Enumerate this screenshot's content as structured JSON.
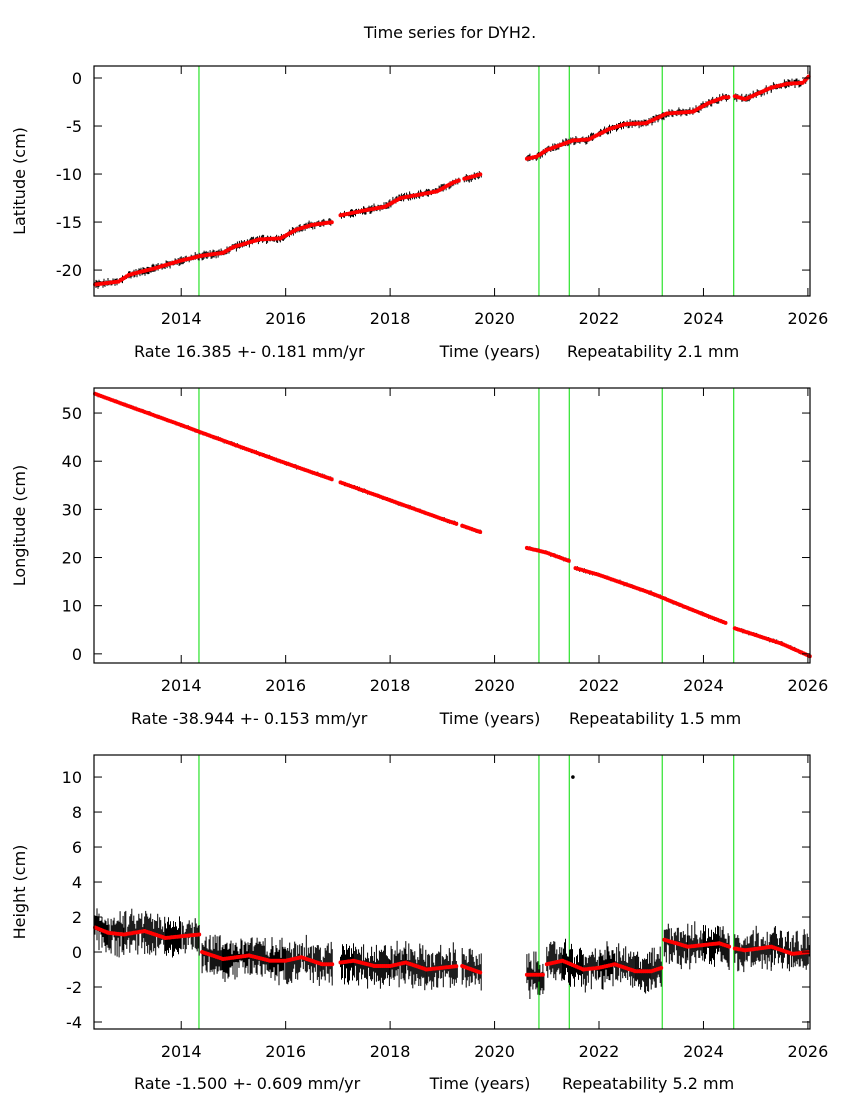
{
  "title": "Time series for DYH2.",
  "colors": {
    "data": "#000000",
    "fit": "#ff0000",
    "event_line": "#00dd00",
    "axis": "#000000"
  },
  "chart_data": [
    {
      "type": "scatter",
      "ylabel": "Latitude (cm)",
      "xlabel": "Time (years)",
      "rate_text": "Rate 16.385 +- 0.181 mm/yr",
      "repeatability_text": "Repeatability 2.1 mm",
      "xlim": [
        2012.33,
        2026.04
      ],
      "ylim": [
        -22.7,
        1.25
      ],
      "xticks": [
        "2014",
        "2016",
        "2018",
        "2020",
        "2022",
        "2024",
        "2026"
      ],
      "yticks": [
        "0",
        "-5",
        "-10",
        "-15",
        "-20"
      ],
      "scatter_halfwidth": 0.35,
      "event_lines": [
        2014.34,
        2020.85,
        2021.43,
        2023.21,
        2024.58
      ],
      "fit_segments": [
        [
          [
            2012.35,
            -21.5
          ],
          [
            2012.8,
            -21.2
          ],
          [
            2013.0,
            -20.5
          ],
          [
            2013.5,
            -19.8
          ],
          [
            2014.0,
            -19.0
          ],
          [
            2014.4,
            -18.5
          ],
          [
            2014.8,
            -18.2
          ],
          [
            2015.0,
            -17.6
          ],
          [
            2015.5,
            -16.8
          ],
          [
            2015.9,
            -16.7
          ],
          [
            2016.2,
            -15.8
          ],
          [
            2016.5,
            -15.3
          ],
          [
            2016.9,
            -15.0
          ]
        ],
        [
          [
            2017.05,
            -14.3
          ],
          [
            2017.5,
            -13.8
          ],
          [
            2017.9,
            -13.4
          ],
          [
            2018.2,
            -12.5
          ],
          [
            2018.6,
            -12.1
          ],
          [
            2018.9,
            -11.8
          ],
          [
            2019.2,
            -10.9
          ],
          [
            2019.35,
            -10.6
          ]
        ],
        [
          [
            2019.42,
            -10.5
          ],
          [
            2019.75,
            -10.0
          ]
        ],
        [
          [
            2020.62,
            -8.4
          ],
          [
            2020.8,
            -8.2
          ],
          [
            2021.0,
            -7.5
          ],
          [
            2021.5,
            -6.5
          ],
          [
            2021.8,
            -6.4
          ],
          [
            2022.2,
            -5.3
          ],
          [
            2022.5,
            -4.8
          ],
          [
            2022.9,
            -4.7
          ],
          [
            2023.3,
            -3.7
          ],
          [
            2023.8,
            -3.5
          ],
          [
            2024.1,
            -2.6
          ],
          [
            2024.4,
            -2.0
          ],
          [
            2024.5,
            -2.0
          ]
        ],
        [
          [
            2024.6,
            -1.9
          ],
          [
            2024.8,
            -2.2
          ],
          [
            2025.3,
            -1.0
          ],
          [
            2025.6,
            -0.6
          ],
          [
            2025.9,
            -0.5
          ],
          [
            2026.04,
            0.3
          ]
        ]
      ],
      "outliers": []
    },
    {
      "type": "scatter",
      "ylabel": "Longitude (cm)",
      "xlabel": "Time (years)",
      "rate_text": "Rate -38.944 +- 0.153 mm/yr",
      "repeatability_text": "Repeatability 1.5 mm",
      "xlim": [
        2012.33,
        2026.04
      ],
      "ylim": [
        -1.9,
        55.2
      ],
      "xticks": [
        "2014",
        "2016",
        "2018",
        "2020",
        "2022",
        "2024",
        "2026"
      ],
      "yticks": [
        "50",
        "40",
        "30",
        "20",
        "10",
        "0"
      ],
      "scatter_halfwidth": 0.35,
      "event_lines": [
        2014.34,
        2020.85,
        2021.43,
        2023.21,
        2024.58
      ],
      "fit_segments": [
        [
          [
            2012.35,
            54.0
          ],
          [
            2013.0,
            51.4
          ],
          [
            2014.0,
            47.5
          ],
          [
            2015.0,
            43.5
          ],
          [
            2016.0,
            39.6
          ],
          [
            2016.9,
            36.2
          ]
        ],
        [
          [
            2017.05,
            35.6
          ],
          [
            2018.0,
            31.9
          ],
          [
            2019.0,
            28.0
          ],
          [
            2019.3,
            26.9
          ]
        ],
        [
          [
            2019.38,
            26.6
          ],
          [
            2019.75,
            25.2
          ]
        ],
        [
          [
            2020.62,
            22.0
          ],
          [
            2021.0,
            21.0
          ],
          [
            2021.45,
            19.2
          ]
        ],
        [
          [
            2021.55,
            17.8
          ],
          [
            2022.0,
            16.4
          ],
          [
            2023.0,
            12.6
          ],
          [
            2024.0,
            8.2
          ],
          [
            2024.45,
            6.3
          ]
        ],
        [
          [
            2024.6,
            5.3
          ],
          [
            2025.0,
            3.9
          ],
          [
            2025.5,
            2.1
          ],
          [
            2026.04,
            -0.5
          ]
        ]
      ],
      "outliers": []
    },
    {
      "type": "scatter",
      "ylabel": "Height (cm)",
      "xlabel": "Time (years)",
      "rate_text": "Rate -1.500 +- 0.609 mm/yr",
      "repeatability_text": "Repeatability 5.2 mm",
      "xlim": [
        2012.33,
        2026.04
      ],
      "ylim": [
        -4.4,
        11.26
      ],
      "xticks": [
        "2014",
        "2016",
        "2018",
        "2020",
        "2022",
        "2024",
        "2026"
      ],
      "yticks": [
        "10",
        "8",
        "6",
        "4",
        "2",
        "0",
        "-2",
        "-4"
      ],
      "scatter_halfwidth": 0.9,
      "event_lines": [
        2014.34,
        2020.85,
        2021.43,
        2023.21,
        2024.58
      ],
      "fit_segments": [
        [
          [
            2012.35,
            1.4
          ],
          [
            2012.6,
            1.1
          ],
          [
            2012.9,
            1.0
          ],
          [
            2013.3,
            1.2
          ],
          [
            2013.7,
            0.8
          ],
          [
            2014.0,
            0.9
          ],
          [
            2014.35,
            1.0
          ]
        ],
        [
          [
            2014.4,
            0.0
          ],
          [
            2014.8,
            -0.4
          ],
          [
            2015.3,
            -0.2
          ],
          [
            2015.7,
            -0.5
          ],
          [
            2016.0,
            -0.5
          ],
          [
            2016.3,
            -0.3
          ],
          [
            2016.7,
            -0.7
          ],
          [
            2016.9,
            -0.7
          ]
        ],
        [
          [
            2017.05,
            -0.6
          ],
          [
            2017.3,
            -0.5
          ],
          [
            2017.7,
            -0.8
          ],
          [
            2018.0,
            -0.8
          ],
          [
            2018.3,
            -0.6
          ],
          [
            2018.7,
            -1.0
          ],
          [
            2019.0,
            -0.9
          ],
          [
            2019.3,
            -0.8
          ]
        ],
        [
          [
            2019.38,
            -0.8
          ],
          [
            2019.75,
            -1.2
          ]
        ],
        [
          [
            2020.62,
            -1.3
          ],
          [
            2020.95,
            -1.3
          ]
        ],
        [
          [
            2021.0,
            -0.7
          ],
          [
            2021.3,
            -0.5
          ],
          [
            2021.7,
            -1.0
          ],
          [
            2022.0,
            -0.9
          ],
          [
            2022.3,
            -0.7
          ],
          [
            2022.7,
            -1.1
          ],
          [
            2023.0,
            -1.1
          ],
          [
            2023.2,
            -0.9
          ]
        ],
        [
          [
            2023.25,
            0.7
          ],
          [
            2023.7,
            0.3
          ],
          [
            2024.0,
            0.4
          ],
          [
            2024.3,
            0.5
          ],
          [
            2024.5,
            0.3
          ]
        ],
        [
          [
            2024.6,
            0.2
          ],
          [
            2024.8,
            0.1
          ],
          [
            2025.3,
            0.3
          ],
          [
            2025.7,
            -0.1
          ],
          [
            2026.04,
            0.0
          ]
        ]
      ],
      "outliers": [
        [
          2021.5,
          10.0
        ]
      ]
    }
  ]
}
